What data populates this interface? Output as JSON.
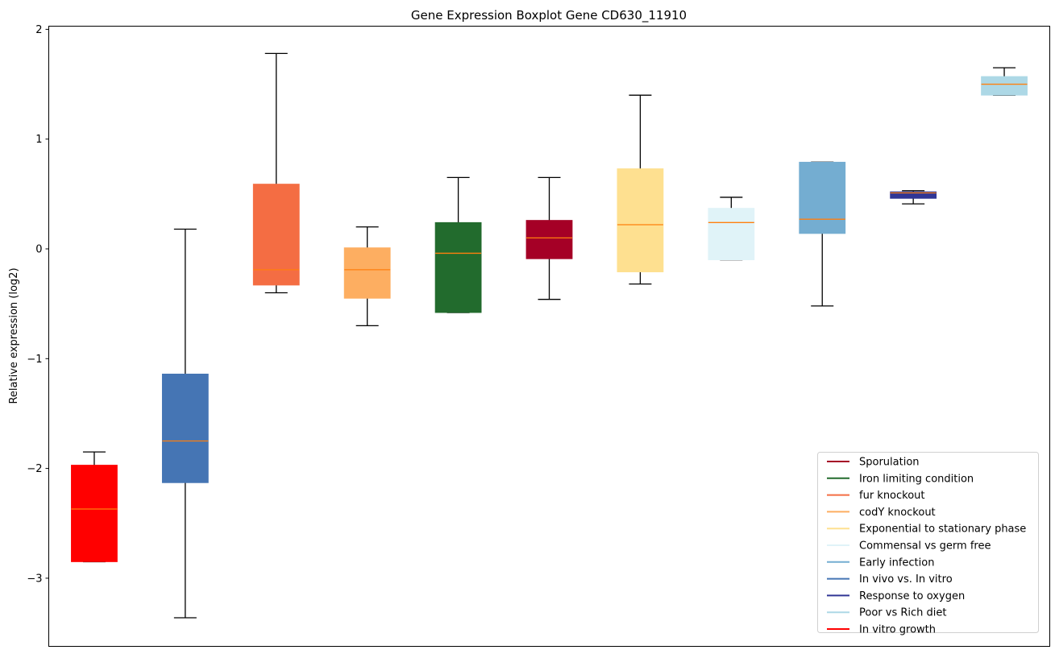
{
  "chart_data": {
    "type": "box",
    "title": "Gene Expression Boxplot Gene CD630_11910",
    "xlabel": "",
    "ylabel": "Relative expression (log2)",
    "ylim": [
      -3.65,
      2.03
    ],
    "yticks": [
      2,
      1,
      0,
      -1,
      -2,
      -3
    ],
    "ytick_labels": [
      "2",
      "1",
      "0",
      "−1",
      "−2",
      "−3"
    ],
    "grid": false,
    "legend_position": "bottom-right",
    "median_color": "#ff7f0e",
    "series": [
      {
        "name": "In vitro growth",
        "color": "#ff0000",
        "whisker_low": -2.85,
        "q1": -2.85,
        "median": -2.37,
        "q3": -1.97,
        "whisker_high": -1.85
      },
      {
        "name": "In vivo vs. In vitro",
        "color": "#4575b4",
        "whisker_low": -3.36,
        "q1": -2.13,
        "median": -1.75,
        "q3": -1.14,
        "whisker_high": 0.18
      },
      {
        "name": "fur knockout",
        "color": "#f46d43",
        "whisker_low": -0.4,
        "q1": -0.33,
        "median": -0.19,
        "q3": 0.59,
        "whisker_high": 1.78
      },
      {
        "name": "codY knockout",
        "color": "#fdae61",
        "whisker_low": -0.7,
        "q1": -0.45,
        "median": -0.19,
        "q3": 0.01,
        "whisker_high": 0.2
      },
      {
        "name": "Iron limiting condition",
        "color": "#226b2d",
        "whisker_low": -0.58,
        "q1": -0.58,
        "median": -0.04,
        "q3": 0.24,
        "whisker_high": 0.65
      },
      {
        "name": "Sporulation",
        "color": "#a50026",
        "whisker_low": -0.46,
        "q1": -0.09,
        "median": 0.1,
        "q3": 0.26,
        "whisker_high": 0.65
      },
      {
        "name": "Exponential to stationary phase",
        "color": "#fee090",
        "whisker_low": -0.32,
        "q1": -0.21,
        "median": 0.22,
        "q3": 0.73,
        "whisker_high": 1.4
      },
      {
        "name": "Commensal vs germ free",
        "color": "#e0f3f8",
        "whisker_low": -0.1,
        "q1": -0.1,
        "median": 0.24,
        "q3": 0.37,
        "whisker_high": 0.47
      },
      {
        "name": "Early infection",
        "color": "#74add1",
        "whisker_low": -0.52,
        "q1": 0.14,
        "median": 0.27,
        "q3": 0.79,
        "whisker_high": 0.79
      },
      {
        "name": "Response to oxygen",
        "color": "#313695",
        "whisker_low": 0.41,
        "q1": 0.46,
        "median": 0.51,
        "q3": 0.52,
        "whisker_high": 0.53
      },
      {
        "name": "Poor vs Rich diet",
        "color": "#add8e6",
        "whisker_low": 1.4,
        "q1": 1.4,
        "median": 1.5,
        "q3": 1.57,
        "whisker_high": 1.65
      }
    ],
    "legend": [
      {
        "label": "Sporulation",
        "color": "#a50026"
      },
      {
        "label": "Iron limiting condition",
        "color": "#226b2d"
      },
      {
        "label": "fur knockout",
        "color": "#f46d43"
      },
      {
        "label": "codY knockout",
        "color": "#fdae61"
      },
      {
        "label": "Exponential to stationary phase",
        "color": "#fee090"
      },
      {
        "label": "Commensal vs germ free",
        "color": "#e0f3f8"
      },
      {
        "label": "Early infection",
        "color": "#74add1"
      },
      {
        "label": "In vivo vs. In vitro",
        "color": "#4575b4"
      },
      {
        "label": "Response to oxygen",
        "color": "#313695"
      },
      {
        "label": "Poor vs Rich diet",
        "color": "#add8e6"
      },
      {
        "label": "In vitro growth",
        "color": "#ff0000"
      }
    ]
  }
}
